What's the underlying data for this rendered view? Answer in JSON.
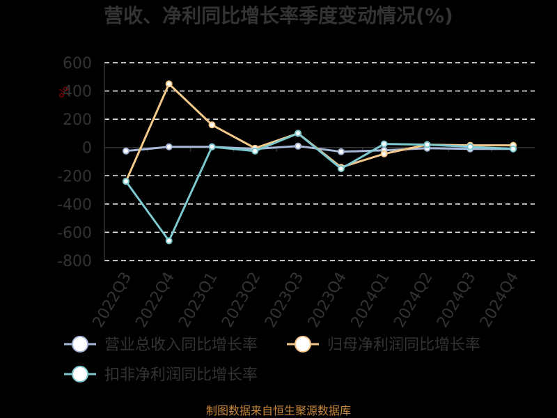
{
  "chart_data": {
    "type": "line",
    "title": "营收、净利同比增长率季度变动情况(%)",
    "ylabel": "%",
    "categories": [
      "2022Q3",
      "2022Q4",
      "2023Q1",
      "2023Q2",
      "2023Q3",
      "2023Q4",
      "2024Q1",
      "2024Q2",
      "2024Q3",
      "2024Q4"
    ],
    "ylim": [
      -800,
      600
    ],
    "yticks": [
      "600",
      "400",
      "200",
      "0",
      "-200",
      "-400",
      "-600",
      "-800"
    ],
    "yticks_values": [
      600,
      400,
      200,
      0,
      -200,
      -400,
      -600,
      -800
    ],
    "grid": true,
    "legend_position": "bottom",
    "series": [
      {
        "name": "营业总收入同比增长率",
        "color": "#a8b8d8",
        "values": [
          -25,
          5,
          5,
          -10,
          10,
          -30,
          -20,
          -5,
          -10,
          -10
        ]
      },
      {
        "name": "归母净利润同比增长率",
        "color": "#f5c98a",
        "values": [
          -240,
          450,
          160,
          -5,
          100,
          -140,
          -45,
          20,
          15,
          15
        ]
      },
      {
        "name": "扣非净利润同比增长率",
        "color": "#7ec8d0",
        "values": [
          -240,
          -660,
          5,
          -25,
          100,
          -150,
          25,
          20,
          5,
          -10
        ]
      }
    ]
  },
  "source": "制图数据来自恒生聚源数据库"
}
